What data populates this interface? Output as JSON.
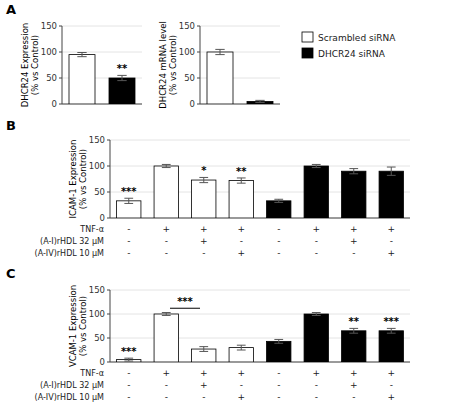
{
  "chart_data": [
    {
      "type": "bar",
      "title": "A",
      "y_label": "DHCR24 Expression\n(% vs Control)",
      "ylim": [
        0,
        150
      ],
      "yticks": [
        0,
        50,
        100,
        150
      ],
      "series": [
        {
          "color": "white",
          "values": [
            95,
            null
          ],
          "errors": [
            4,
            null
          ],
          "annotations": [
            null,
            null
          ]
        },
        {
          "color": "black",
          "values": [
            null,
            50
          ],
          "errors": [
            null,
            5
          ],
          "annotations": [
            null,
            "**"
          ]
        }
      ]
    },
    {
      "type": "bar",
      "y_label": "DHCR24 mRNA level\n(% vs Control)",
      "ylim": [
        0,
        150
      ],
      "yticks": [
        0,
        50,
        100,
        150
      ],
      "legend": "right",
      "series": [
        {
          "name": "Scrambled siRNA",
          "color": "white",
          "values": [
            100,
            null
          ],
          "errors": [
            5,
            null
          ],
          "annotations": [
            null,
            null
          ]
        },
        {
          "name": "DHCR24 siRNA",
          "color": "black",
          "values": [
            null,
            5
          ],
          "errors": [
            null,
            2
          ],
          "annotations": [
            null,
            null
          ]
        }
      ]
    },
    {
      "type": "bar",
      "title": "B",
      "y_label": "ICAM-1 Expression\n(% vs Control)",
      "ylim": [
        0,
        150
      ],
      "yticks": [
        0,
        50,
        100,
        150
      ],
      "series": [
        {
          "color": "white",
          "values": [
            33,
            100,
            73,
            72,
            null,
            null,
            null,
            null
          ],
          "errors": [
            5,
            3,
            5,
            5,
            null,
            null,
            null,
            null
          ],
          "annotations": [
            "***",
            null,
            "*",
            "**",
            null,
            null,
            null,
            null
          ]
        },
        {
          "color": "black",
          "values": [
            null,
            null,
            null,
            null,
            33,
            100,
            90,
            90
          ],
          "errors": [
            null,
            null,
            null,
            null,
            3,
            3,
            5,
            8
          ],
          "annotations": [
            null,
            null,
            null,
            null,
            null,
            null,
            null,
            null
          ]
        }
      ],
      "category_rows": [
        {
          "name": "TNF-α",
          "labels": [
            "-",
            "+",
            "+",
            "+",
            "-",
            "+",
            "+",
            "+"
          ]
        },
        {
          "name": "(A-I)rHDL 32 μM",
          "labels": [
            "-",
            "-",
            "+",
            "-",
            "-",
            "-",
            "+",
            "-"
          ]
        },
        {
          "name": "(A-IV)rHDL 10 μM",
          "labels": [
            "-",
            "-",
            "-",
            "+",
            "-",
            "-",
            "-",
            "+"
          ]
        }
      ]
    },
    {
      "type": "bar",
      "title": "C",
      "y_label": "VCAM-1 Expression\n(% vs Control)",
      "ylim": [
        0,
        150
      ],
      "yticks": [
        0,
        50,
        100,
        150
      ],
      "series": [
        {
          "color": "white",
          "values": [
            5,
            100,
            27,
            30,
            null,
            null,
            null,
            null
          ],
          "errors": [
            3,
            3,
            5,
            5,
            null,
            null,
            null,
            null
          ],
          "annotations": [
            "***",
            null,
            null,
            null,
            null,
            null,
            null,
            null
          ]
        },
        {
          "color": "black",
          "values": [
            null,
            null,
            null,
            null,
            43,
            100,
            65,
            65
          ],
          "errors": [
            null,
            null,
            null,
            null,
            4,
            3,
            5,
            5
          ],
          "annotations": [
            null,
            null,
            null,
            null,
            null,
            null,
            "**",
            "***"
          ]
        }
      ],
      "brackets": [
        {
          "text": "***",
          "y": 112,
          "between": [
            1,
            2
          ]
        }
      ],
      "category_rows": [
        {
          "name": "TNF-α",
          "labels": [
            "-",
            "+",
            "+",
            "+",
            "-",
            "+",
            "+",
            "+"
          ]
        },
        {
          "name": "(A-I)rHDL 32 μM",
          "labels": [
            "-",
            "-",
            "+",
            "-",
            "-",
            "-",
            "+",
            "-"
          ]
        },
        {
          "name": "(A-IV)rHDL 10 μM",
          "labels": [
            "-",
            "-",
            "-",
            "+",
            "-",
            "-",
            "-",
            "+"
          ]
        }
      ]
    }
  ]
}
